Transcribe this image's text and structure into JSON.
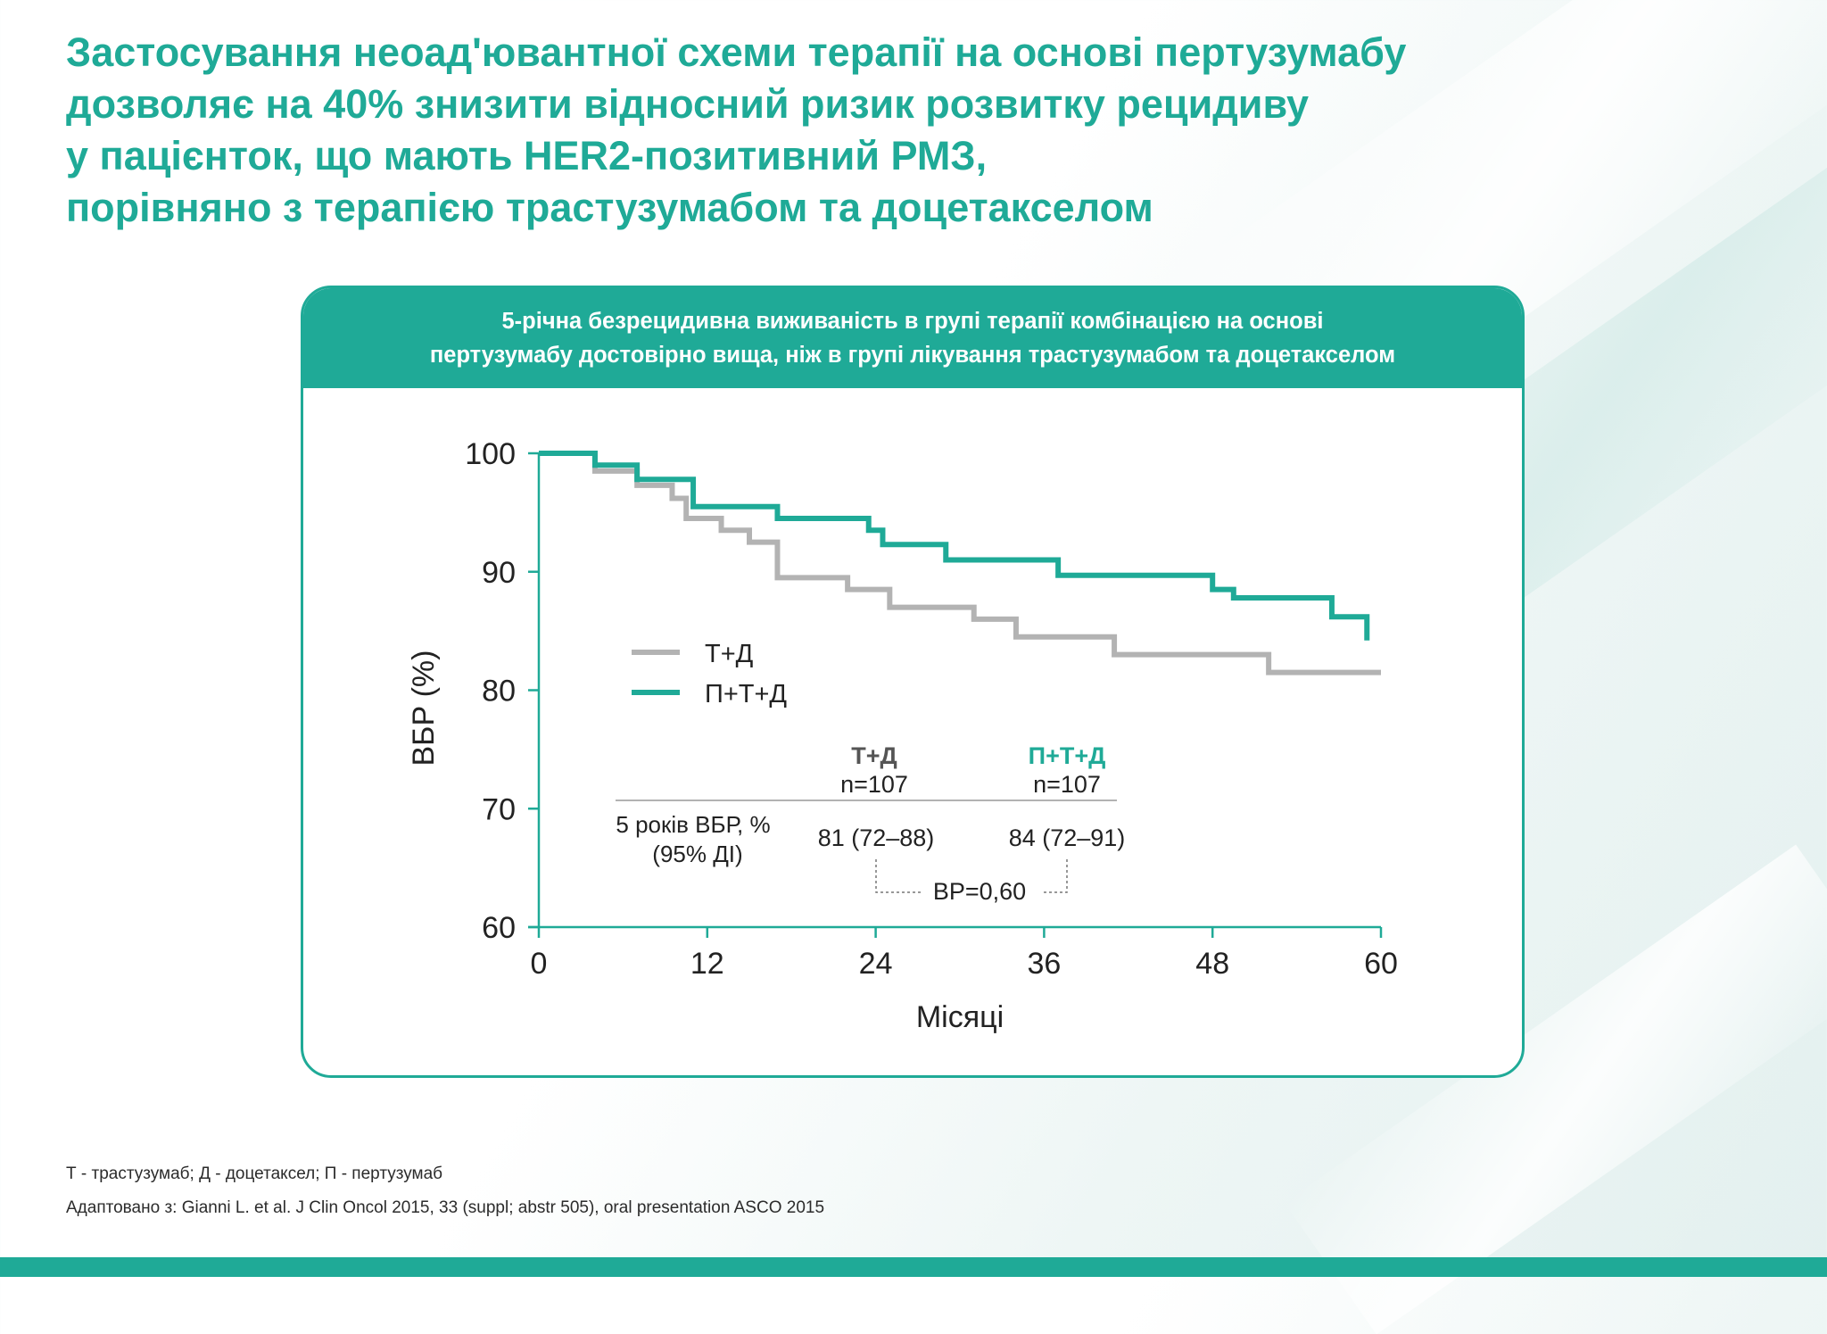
{
  "headline": {
    "lines": [
      "Застосування неоад'ювантної схеми терапії на основі пертузумабу",
      "дозволяє на 40% знизити відносний ризик розвитку рецидиву",
      "у пацієнток, що мають HER2-позитивний РМЗ,",
      "порівняно з терапією трастузумабом та доцетакселом"
    ]
  },
  "card": {
    "header_lines": [
      "5-річна безрецидивна виживаність в групі терапії комбінацією на основі",
      "пертузумабу достовірно вища, ніж в групі лікування трастузумабом та доцетакселом"
    ]
  },
  "colors": {
    "accent": "#1faa97",
    "td_line": "#b3b3b3",
    "ptd_line": "#1faa97",
    "text_dark": "#222222"
  },
  "chart_data": {
    "type": "line",
    "xlabel": "Місяці",
    "ylabel": "ВБР (%)",
    "xlim": [
      0,
      60
    ],
    "ylim": [
      60,
      100
    ],
    "xticks": [
      0,
      12,
      24,
      36,
      48,
      60
    ],
    "yticks": [
      60,
      70,
      80,
      90,
      100
    ],
    "grid": false,
    "legend_position": "middle-left",
    "series": [
      {
        "name": "Т+Д",
        "color": "#b3b3b3",
        "step": true,
        "points": [
          [
            0,
            100
          ],
          [
            4,
            98.5
          ],
          [
            7,
            97.3
          ],
          [
            9.5,
            96.2
          ],
          [
            10.5,
            94.5
          ],
          [
            13,
            93.5
          ],
          [
            15,
            92.5
          ],
          [
            17,
            89.5
          ],
          [
            22,
            88.5
          ],
          [
            25,
            87
          ],
          [
            31,
            86
          ],
          [
            34,
            84.5
          ],
          [
            41,
            83
          ],
          [
            52,
            81.5
          ],
          [
            60,
            81.5
          ]
        ]
      },
      {
        "name": "П+Т+Д",
        "color": "#1faa97",
        "step": true,
        "points": [
          [
            0,
            100
          ],
          [
            4,
            99
          ],
          [
            7,
            97.8
          ],
          [
            11,
            95.5
          ],
          [
            17,
            94.5
          ],
          [
            23.5,
            93.5
          ],
          [
            24.5,
            92.3
          ],
          [
            29,
            91
          ],
          [
            37,
            89.7
          ],
          [
            48,
            88.5
          ],
          [
            49.5,
            87.8
          ],
          [
            56.5,
            86.2
          ],
          [
            59,
            84.2
          ]
        ]
      }
    ]
  },
  "summary_table": {
    "td_header": "Т+Д",
    "td_n": "n=107",
    "ptd_header": "П+Т+Д",
    "ptd_n": "n=107",
    "row_label_line1": "5 років ВБР, %",
    "row_label_line2": "(95% ДІ)",
    "td_value": "81 (72–88)",
    "ptd_value": "84 (72–91)",
    "hr": "ВР=0,60"
  },
  "footnotes": {
    "abbreviations": "Т - трастузумаб; Д - доцетаксел; П - пертузумаб",
    "source": "Адаптовано з: Gianni L. et al. J Clin Oncol 2015, 33 (suppl; abstr 505), oral presentation ASCO 2015"
  }
}
